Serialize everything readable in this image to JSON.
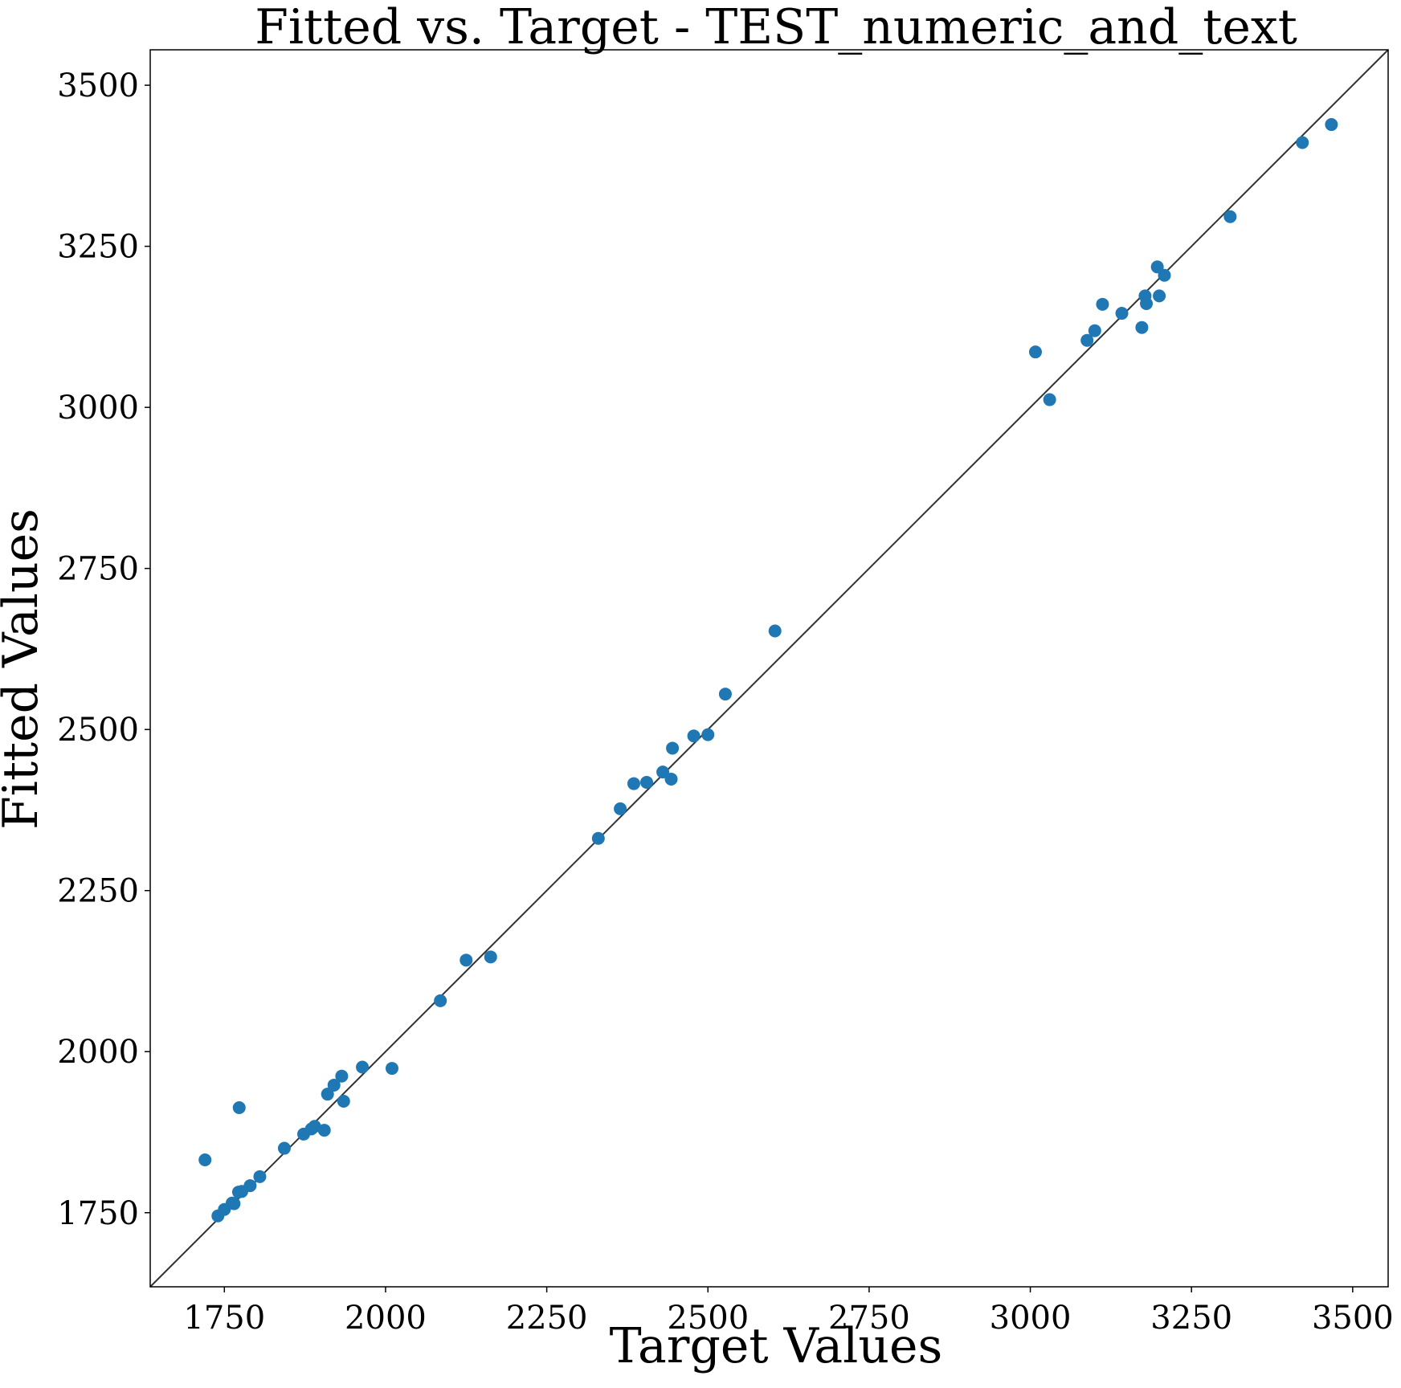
{
  "chart_data": {
    "type": "scatter",
    "title": "Fitted vs. Target - TEST_numeric_and_text",
    "xlabel": "Target Values",
    "ylabel": "Fitted Values",
    "xlim": [
      1635,
      3555
    ],
    "ylim": [
      1635,
      3555
    ],
    "xticks": [
      1750,
      2000,
      2250,
      2500,
      2750,
      3000,
      3250,
      3500
    ],
    "yticks": [
      1750,
      2000,
      2250,
      2500,
      2750,
      3000,
      3250,
      3500
    ],
    "grid": false,
    "marker_color": "#1f77b4",
    "reference_line": {
      "from": [
        1635,
        1635
      ],
      "to": [
        3555,
        3555
      ],
      "color": "#333333"
    },
    "points": [
      {
        "x": 1720,
        "y": 1832
      },
      {
        "x": 1740,
        "y": 1745
      },
      {
        "x": 1750,
        "y": 1755
      },
      {
        "x": 1762,
        "y": 1765
      },
      {
        "x": 1765,
        "y": 1764
      },
      {
        "x": 1772,
        "y": 1782
      },
      {
        "x": 1777,
        "y": 1783
      },
      {
        "x": 1773,
        "y": 1913
      },
      {
        "x": 1790,
        "y": 1792
      },
      {
        "x": 1805,
        "y": 1806
      },
      {
        "x": 1843,
        "y": 1850
      },
      {
        "x": 1873,
        "y": 1872
      },
      {
        "x": 1885,
        "y": 1880
      },
      {
        "x": 1890,
        "y": 1884
      },
      {
        "x": 1905,
        "y": 1878
      },
      {
        "x": 1910,
        "y": 1934
      },
      {
        "x": 1920,
        "y": 1948
      },
      {
        "x": 1932,
        "y": 1962
      },
      {
        "x": 1935,
        "y": 1923
      },
      {
        "x": 1964,
        "y": 1976
      },
      {
        "x": 2010,
        "y": 1974
      },
      {
        "x": 2085,
        "y": 2079
      },
      {
        "x": 2125,
        "y": 2142
      },
      {
        "x": 2163,
        "y": 2147
      },
      {
        "x": 2330,
        "y": 2331
      },
      {
        "x": 2364,
        "y": 2377
      },
      {
        "x": 2385,
        "y": 2416
      },
      {
        "x": 2405,
        "y": 2418
      },
      {
        "x": 2430,
        "y": 2434
      },
      {
        "x": 2443,
        "y": 2423
      },
      {
        "x": 2445,
        "y": 2471
      },
      {
        "x": 2478,
        "y": 2490
      },
      {
        "x": 2500,
        "y": 2492
      },
      {
        "x": 2527,
        "y": 2555
      },
      {
        "x": 2604,
        "y": 2653
      },
      {
        "x": 3008,
        "y": 3086
      },
      {
        "x": 3030,
        "y": 3012
      },
      {
        "x": 3088,
        "y": 3104
      },
      {
        "x": 3100,
        "y": 3119
      },
      {
        "x": 3112,
        "y": 3160
      },
      {
        "x": 3142,
        "y": 3146
      },
      {
        "x": 3173,
        "y": 3124
      },
      {
        "x": 3178,
        "y": 3173
      },
      {
        "x": 3180,
        "y": 3161
      },
      {
        "x": 3197,
        "y": 3218
      },
      {
        "x": 3200,
        "y": 3173
      },
      {
        "x": 3208,
        "y": 3205
      },
      {
        "x": 3310,
        "y": 3296
      },
      {
        "x": 3422,
        "y": 3411
      },
      {
        "x": 3467,
        "y": 3439
      }
    ]
  }
}
